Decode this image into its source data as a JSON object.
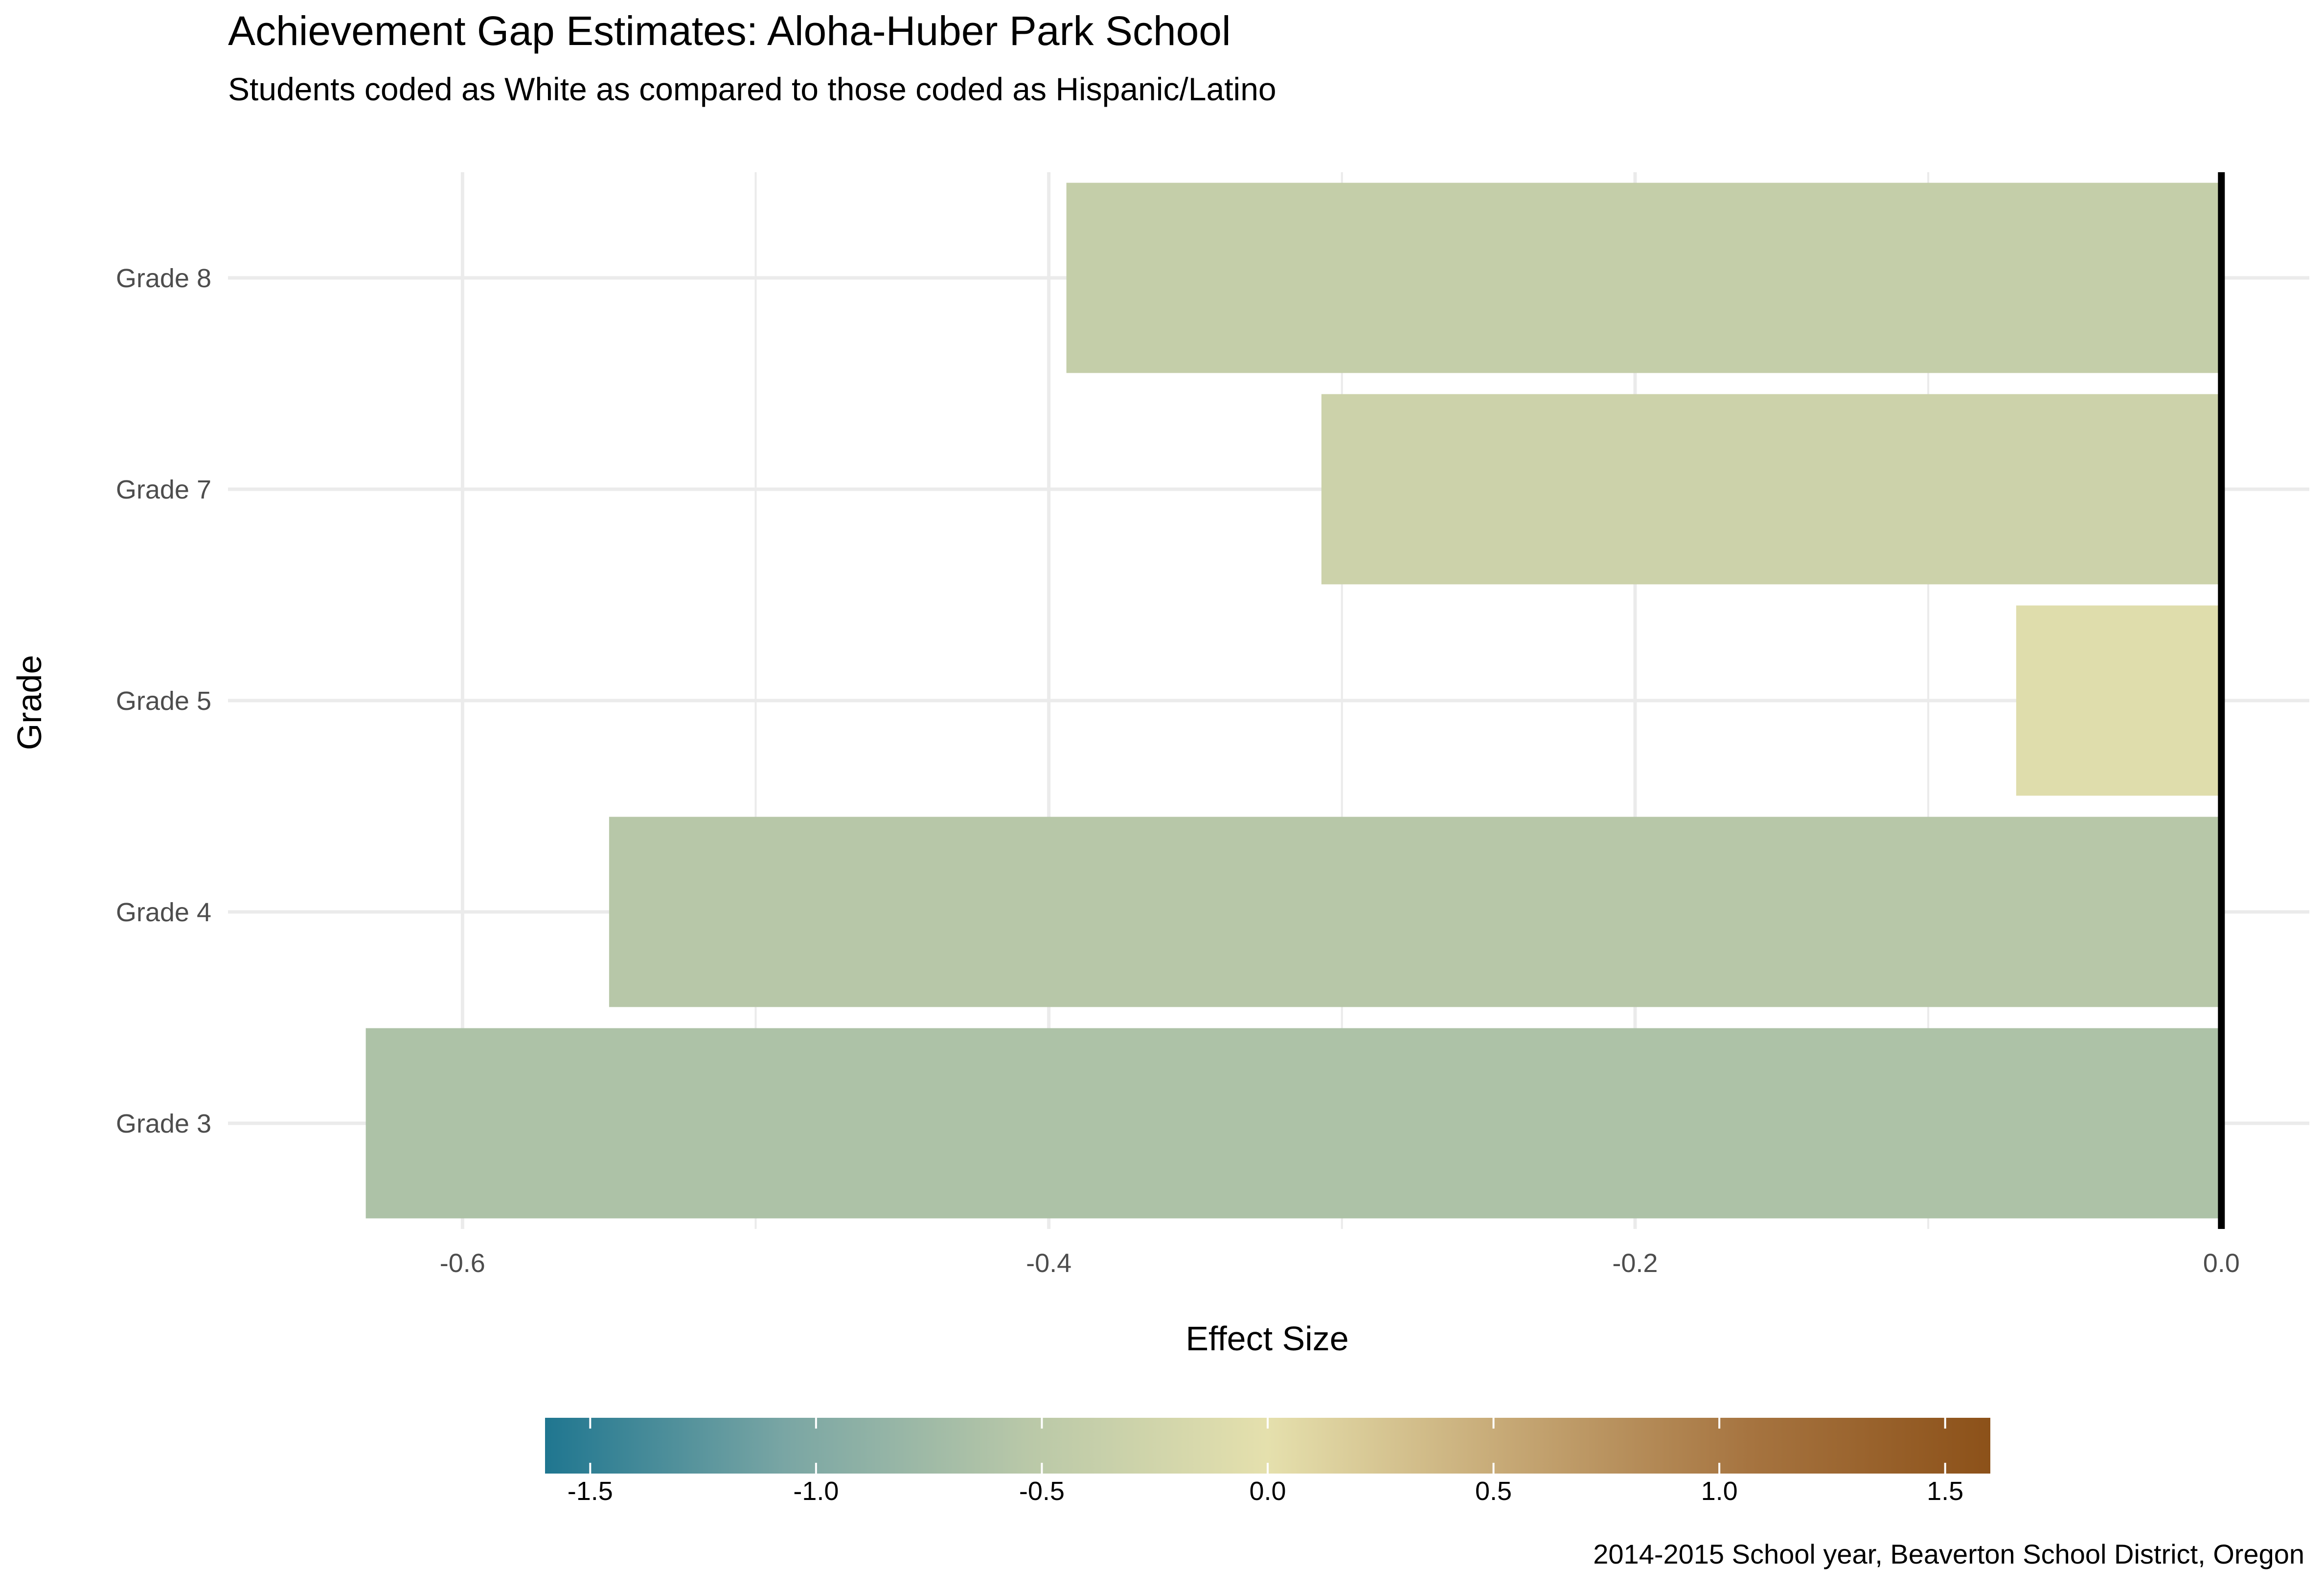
{
  "chart_data": {
    "type": "bar",
    "orientation": "horizontal",
    "title": "Achievement Gap Estimates: Aloha-Huber Park School",
    "subtitle": "Students coded as White as compared to those coded as Hispanic/Latino",
    "xlabel": "Effect Size",
    "ylabel": "Grade",
    "caption": "2014-2015 School year, Beaverton School District, Oregon",
    "categories": [
      "Grade 3",
      "Grade 4",
      "Grade 5",
      "Grade 7",
      "Grade 8"
    ],
    "values": [
      -0.633,
      -0.55,
      -0.07,
      -0.307,
      -0.394
    ],
    "xlim": [
      -0.68,
      0.03
    ],
    "xticks": [
      -0.6,
      -0.4,
      -0.2,
      0.0
    ],
    "xtick_labels": [
      "-0.6",
      "-0.4",
      "-0.2",
      "0.0"
    ],
    "grid": true,
    "reference_line": 0,
    "legend": {
      "type": "colorbar",
      "placement": "bottom",
      "range": [
        -1.6,
        1.6
      ],
      "ticks": [
        -1.5,
        -1.0,
        -0.5,
        0.0,
        0.5,
        1.0,
        1.5
      ],
      "tick_labels": [
        "-1.5",
        "-1.0",
        "-0.5",
        "0.0",
        "0.5",
        "1.0",
        "1.5"
      ],
      "colors": [
        "#1f7690",
        "#7aa6a4",
        "#b9c8a8",
        "#e5e0ad",
        "#c6a875",
        "#a67440",
        "#8c5119"
      ]
    },
    "colors": {
      "reference_line": "#000000",
      "grid": "#ebebeb"
    }
  }
}
